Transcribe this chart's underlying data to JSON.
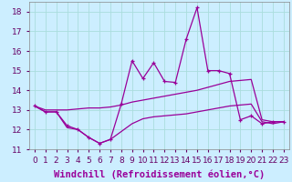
{
  "xlabel": "Windchill (Refroidissement éolien,°C)",
  "background_color": "#cceeff",
  "grid_color": "#aadddd",
  "line_color": "#990099",
  "xlim": [
    -0.5,
    23.5
  ],
  "ylim": [
    11.0,
    18.5
  ],
  "x": [
    0,
    1,
    2,
    3,
    4,
    5,
    6,
    7,
    8,
    9,
    10,
    11,
    12,
    13,
    14,
    15,
    16,
    17,
    18,
    19,
    20,
    21,
    22,
    23
  ],
  "line_jagged": [
    13.2,
    12.9,
    12.9,
    12.2,
    12.0,
    11.6,
    11.3,
    11.5,
    13.3,
    15.5,
    14.6,
    15.4,
    14.45,
    14.4,
    16.6,
    18.2,
    15.0,
    15.0,
    14.85,
    12.5,
    12.7,
    12.3,
    12.4,
    12.4
  ],
  "line_smooth_top": [
    13.2,
    13.0,
    13.0,
    13.0,
    13.05,
    13.1,
    13.1,
    13.15,
    13.25,
    13.4,
    13.5,
    13.6,
    13.7,
    13.8,
    13.9,
    14.0,
    14.15,
    14.3,
    14.45,
    14.5,
    14.55,
    12.5,
    12.4,
    12.4
  ],
  "line_smooth_bot": [
    13.2,
    12.9,
    12.9,
    12.1,
    12.0,
    11.6,
    11.3,
    11.5,
    11.9,
    12.3,
    12.55,
    12.65,
    12.7,
    12.75,
    12.8,
    12.9,
    13.0,
    13.1,
    13.2,
    13.25,
    13.3,
    12.4,
    12.3,
    12.4
  ],
  "tick_fontsize": 6.5,
  "label_fontsize": 7.5
}
